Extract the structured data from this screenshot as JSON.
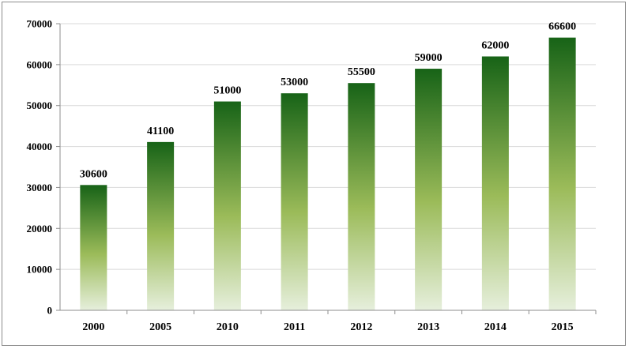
{
  "chart_data": {
    "type": "bar",
    "title": "",
    "xlabel": "",
    "ylabel": "",
    "categories": [
      "2000",
      "2005",
      "2010",
      "2011",
      "2012",
      "2013",
      "2014",
      "2015"
    ],
    "values": [
      30600,
      41100,
      51000,
      53000,
      55500,
      59000,
      62000,
      66600
    ],
    "ylim": [
      0,
      70000
    ],
    "yticks": [
      "0",
      "10000",
      "20000",
      "30000",
      "40000",
      "50000",
      "60000",
      "70000"
    ],
    "grid": true,
    "legend": "none",
    "colors": {
      "bar_top": "#176317",
      "bar_mid": "#9bbb59",
      "bar_bottom": "#e6efdc",
      "grid": "#d9d9d9",
      "axis": "#8c8c8c"
    }
  }
}
